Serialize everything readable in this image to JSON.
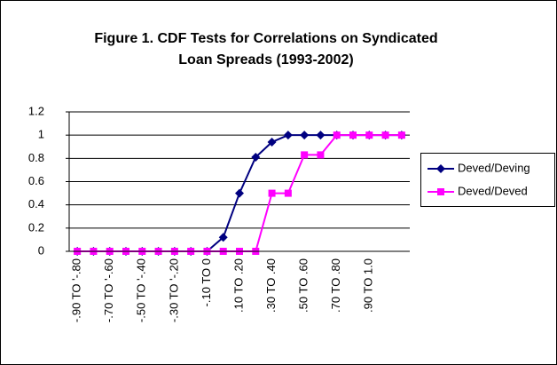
{
  "chart_data": {
    "type": "line",
    "title": [
      "Figure 1. CDF Tests for Correlations on Syndicated",
      "Loan Spreads (1993-2002)"
    ],
    "categories": [
      "-.90 TO '-.80",
      null,
      "-.70 TO '-.60",
      null,
      "-.50 TO '-.40",
      null,
      "-.30 TO '-.20",
      null,
      "-.10 TO 0",
      null,
      ".10 TO .20",
      null,
      ".30 TO .40",
      null,
      ".50 TO .60",
      null,
      ".70 TO .80",
      null,
      ".90 TO 1.0",
      null,
      null
    ],
    "series": [
      {
        "name": "Deved/Deving",
        "color": "#000080",
        "marker": "diamond",
        "values": [
          0,
          0,
          0,
          0,
          0,
          0,
          0,
          0,
          0,
          0.12,
          0.5,
          0.81,
          0.94,
          1,
          1,
          1,
          1,
          1,
          1,
          1,
          1
        ]
      },
      {
        "name": "Deved/Deved",
        "color": "#ff00ff",
        "marker": "square",
        "values": [
          0,
          0,
          0,
          0,
          0,
          0,
          0,
          0,
          0,
          0,
          0,
          0,
          0.5,
          0.5,
          0.83,
          0.83,
          1,
          1,
          1,
          1,
          1
        ]
      }
    ],
    "ylim": [
      0,
      1.2
    ],
    "yticks": [
      0,
      0.2,
      0.4,
      0.6,
      0.8,
      1,
      1.2
    ],
    "grid": true,
    "legend": "right"
  }
}
